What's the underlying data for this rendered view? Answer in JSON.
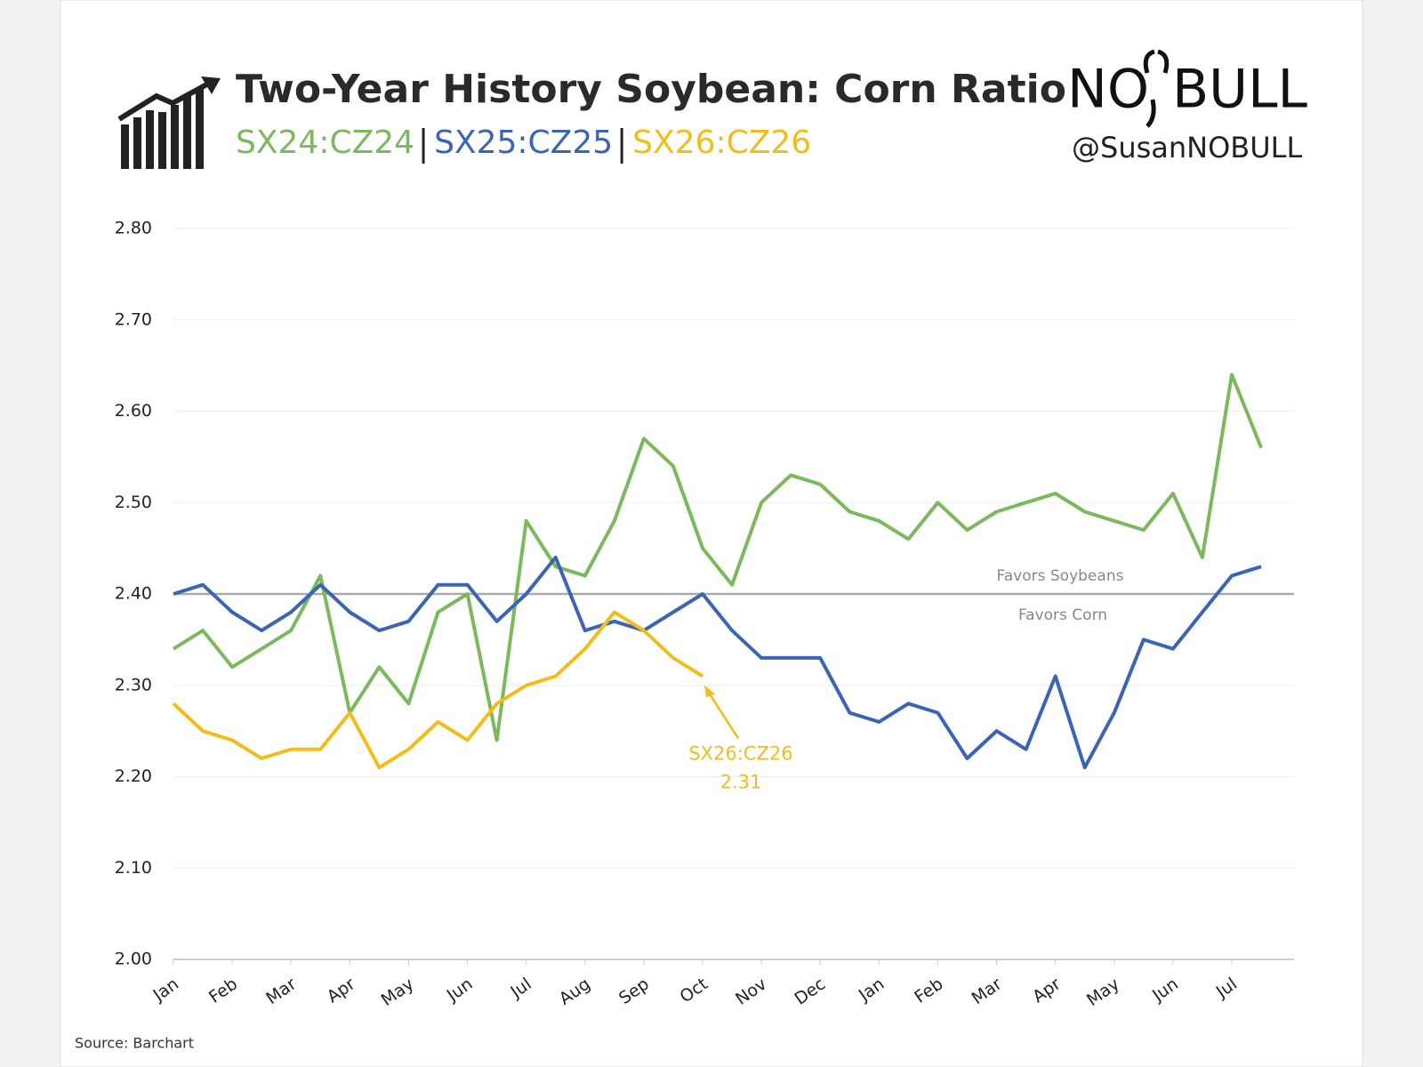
{
  "chart_data": {
    "type": "line",
    "title": "Two-Year History Soybean: Corn Ratio",
    "brand": {
      "left": "NO",
      "right": "BULL",
      "handle": "@SusanNOBULL"
    },
    "source": "Source: Barchart",
    "categories": [
      "Jan",
      null,
      "Feb",
      null,
      "Mar",
      null,
      "Apr",
      null,
      "May",
      null,
      "Jun",
      null,
      "Jul",
      null,
      "Aug",
      null,
      "Sep",
      null,
      "Oct",
      null,
      "Nov",
      null,
      "Dec",
      null,
      "Jan",
      null,
      "Feb",
      null,
      "Mar",
      null,
      "Apr",
      null,
      "May",
      null,
      "Jun",
      null,
      "Jul",
      null
    ],
    "series": [
      {
        "name": "SX24:CZ24",
        "color": "#7cb85c",
        "values": [
          2.34,
          2.36,
          2.32,
          2.34,
          2.36,
          2.42,
          2.27,
          2.32,
          2.28,
          2.38,
          2.4,
          2.24,
          2.48,
          2.43,
          2.42,
          2.48,
          2.57,
          2.54,
          2.45,
          2.41,
          2.5,
          2.53,
          2.52,
          2.49,
          2.48,
          2.46,
          2.5,
          2.47,
          2.49,
          2.5,
          2.51,
          2.49,
          2.48,
          2.47,
          2.51,
          2.44,
          2.64,
          2.56
        ]
      },
      {
        "name": "SX25:CZ25",
        "color": "#3a64b4",
        "values": [
          2.4,
          2.41,
          2.38,
          2.36,
          2.38,
          2.41,
          2.38,
          2.36,
          2.37,
          2.41,
          2.41,
          2.37,
          2.4,
          2.44,
          2.36,
          2.37,
          2.36,
          2.38,
          2.4,
          2.36,
          2.33,
          2.33,
          2.33,
          2.27,
          2.26,
          2.28,
          2.27,
          2.22,
          2.25,
          2.23,
          2.31,
          2.21,
          2.27,
          2.35,
          2.34,
          2.38,
          2.42,
          2.43
        ]
      },
      {
        "name": "SX26:CZ26",
        "color": "#f2bd1a",
        "values": [
          2.28,
          2.25,
          2.24,
          2.22,
          2.23,
          2.23,
          2.27,
          2.21,
          2.23,
          2.26,
          2.24,
          2.28,
          2.3,
          2.31,
          2.34,
          2.38,
          2.36,
          2.33,
          2.31,
          null,
          null,
          null,
          null,
          null,
          null,
          null,
          null,
          null,
          null,
          null,
          null,
          null,
          null,
          null,
          null,
          null,
          null,
          null
        ]
      }
    ],
    "ylim": [
      2.0,
      2.8
    ],
    "yticks": [
      {
        "value": 2.0,
        "label": "2.00"
      },
      {
        "value": 2.1,
        "label": "2.10"
      },
      {
        "value": 2.2,
        "label": "2.20"
      },
      {
        "value": 2.3,
        "label": "2.30"
      },
      {
        "value": 2.4,
        "label": "2.40"
      },
      {
        "value": 2.5,
        "label": "2.50"
      },
      {
        "value": 2.6,
        "label": "2.60"
      },
      {
        "value": 2.7,
        "label": "2.70"
      },
      {
        "value": 2.8,
        "label": "2.80"
      }
    ],
    "grid": true,
    "reference_line": {
      "value": 2.4,
      "above_label": "Favors Soybeans",
      "below_label": "Favors Corn"
    },
    "annotation": {
      "label": "SX26:CZ26",
      "value": 2.31
    }
  }
}
